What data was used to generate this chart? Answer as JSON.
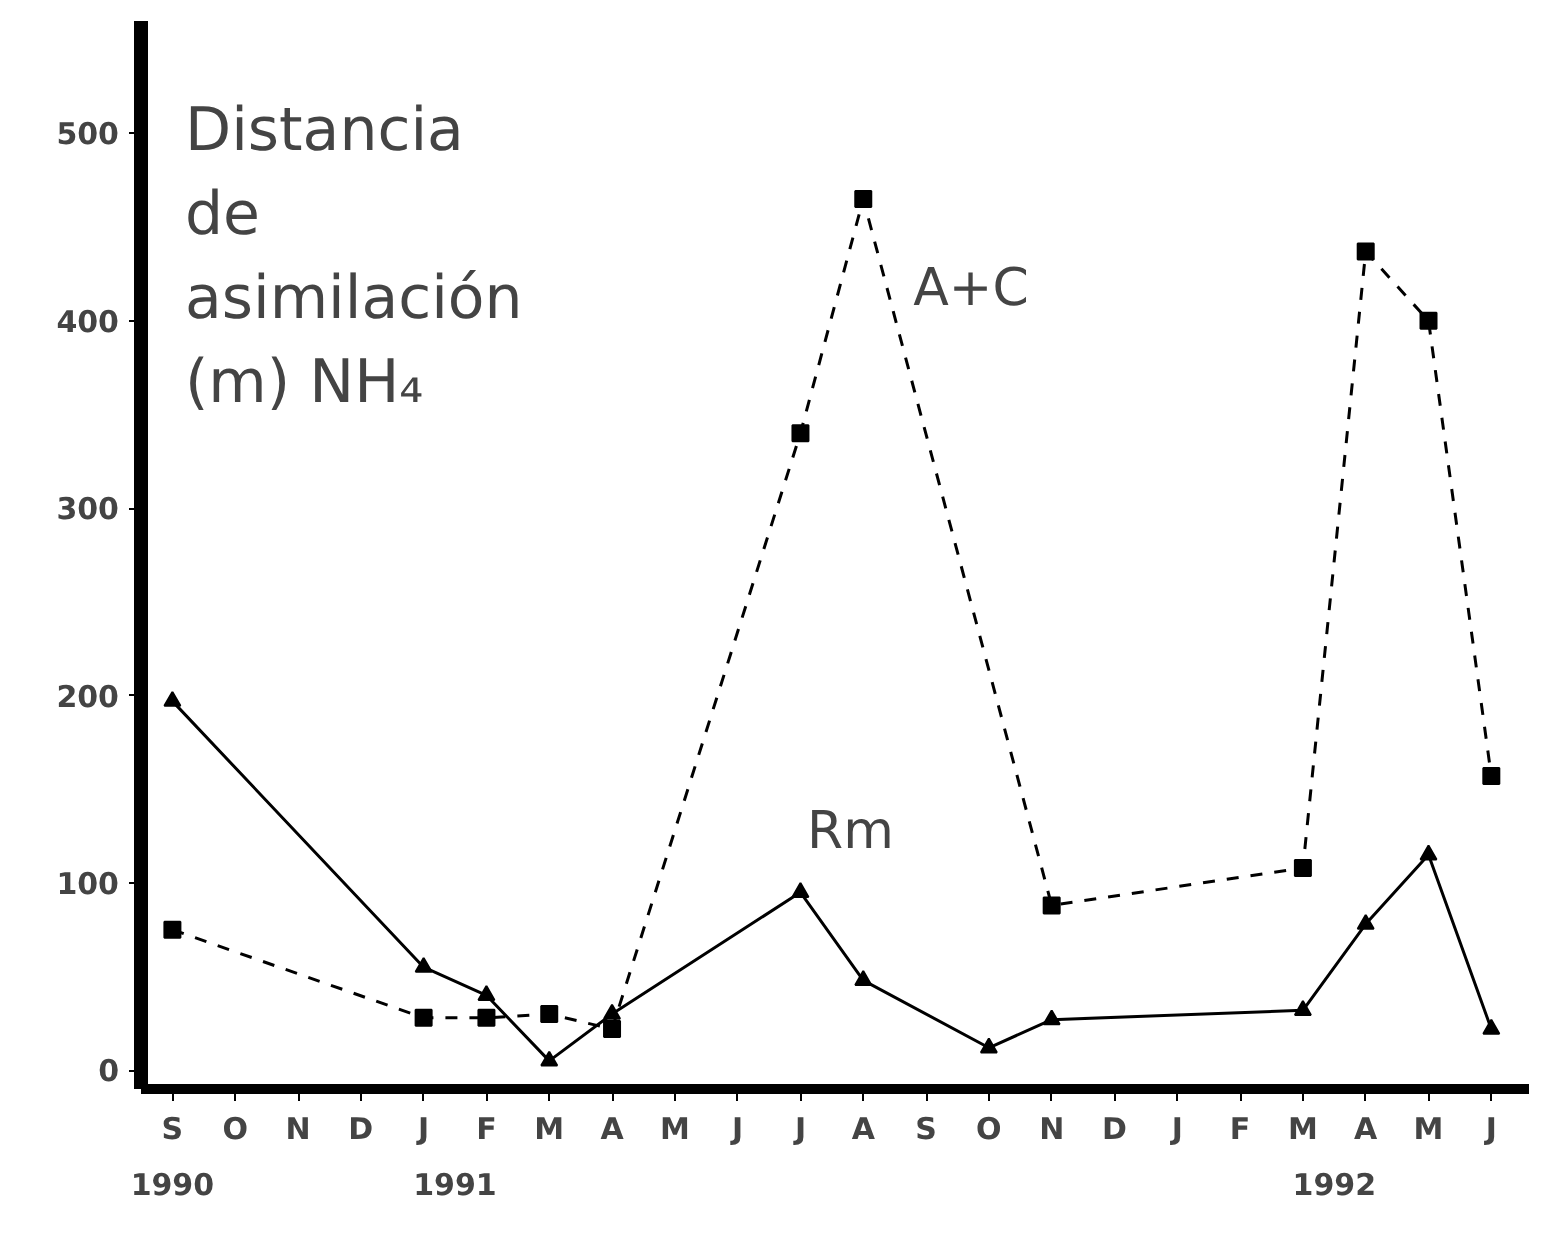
{
  "chart_data": {
    "type": "line",
    "title": "Distancia de asimilación (m) NH₄",
    "categories": [
      "S",
      "O",
      "N",
      "D",
      "J",
      "F",
      "M",
      "A",
      "M",
      "J",
      "J",
      "A",
      "S",
      "O",
      "N",
      "D",
      "J",
      "F",
      "M",
      "A",
      "M",
      "J"
    ],
    "ylim": [
      -10,
      560
    ],
    "yticks": [
      0,
      100,
      200,
      300,
      400,
      500
    ],
    "grid": false,
    "legend": false,
    "series": [
      {
        "name": "A+C",
        "color": "#000000",
        "marker": "square",
        "line_style": "dashed",
        "values": [
          75,
          null,
          null,
          null,
          28,
          28,
          30,
          22,
          null,
          null,
          340,
          465,
          null,
          null,
          88,
          null,
          null,
          null,
          108,
          437,
          400,
          157
        ]
      },
      {
        "name": "Rm",
        "color": "#000000",
        "marker": "triangle",
        "line_style": "solid",
        "values": [
          197,
          null,
          null,
          null,
          55,
          40,
          5,
          30,
          null,
          null,
          95,
          48,
          null,
          12,
          27,
          null,
          null,
          null,
          32,
          78,
          115,
          22
        ]
      }
    ],
    "annotations": [
      "1990",
      "1991",
      "1992"
    ]
  }
}
